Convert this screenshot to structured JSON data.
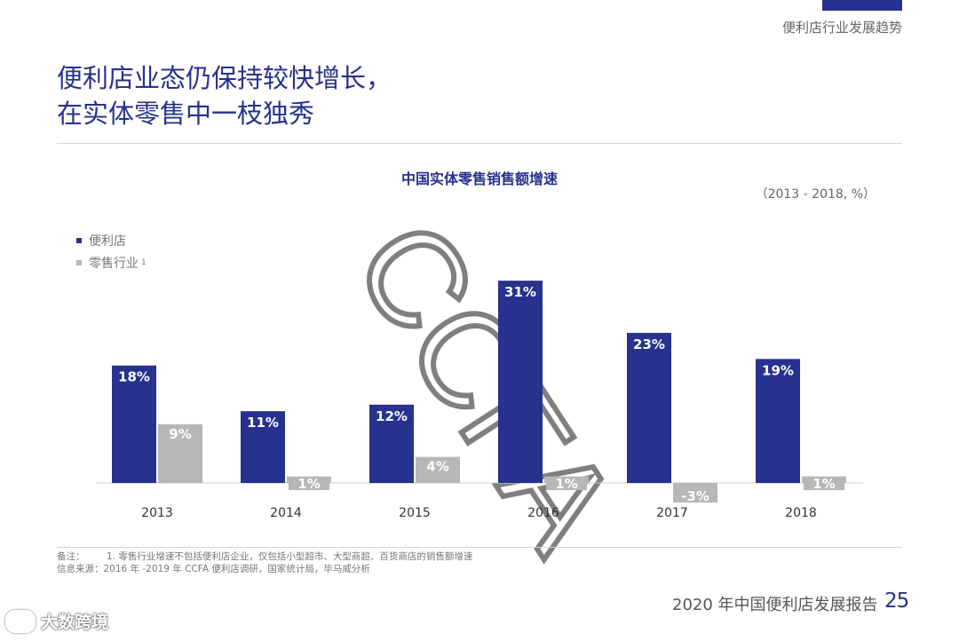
{
  "header": {
    "section_label": "便利店行业发展趋势",
    "headline_line1": "便利店业态仍保持较快增长，",
    "headline_line2": "在实体零售中一枝独秀"
  },
  "chart_data": {
    "type": "bar",
    "title": "中国实体零售销售额增速",
    "subtitle": "（2013 - 2018, %）",
    "categories": [
      "2013",
      "2014",
      "2015",
      "2016",
      "2017",
      "2018"
    ],
    "series": [
      {
        "name": "便利店",
        "values": [
          18,
          11,
          12,
          31,
          23,
          19
        ],
        "labels": [
          "18%",
          "11%",
          "12%",
          "31%",
          "23%",
          "19%"
        ],
        "color": "#27318e"
      },
      {
        "name": "零售行业",
        "values": [
          9,
          1,
          4,
          1,
          -3,
          1
        ],
        "labels": [
          "9%",
          "1%",
          "4%",
          "1%",
          "-3%",
          "1%"
        ],
        "color": "#b7b7b7"
      }
    ],
    "legend_note": "1",
    "legend_position": "top-left",
    "xlabel": "",
    "ylabel": "",
    "grid": false,
    "watermark": "CCFA"
  },
  "notes": {
    "note_label": "备注：",
    "note_text": "1. 零售行业增速不包括便利店企业，仅包括小型超市、大型商超、百货商店的销售额增速",
    "source": "信息来源：2016 年 -2019 年 CCFA 便利店调研，国家统计局，毕马威分析"
  },
  "footer": {
    "report_title": "2020 年中国便利店发展报告",
    "page_number": "25",
    "brand": "大数跨境"
  },
  "colors": {
    "accent": "#27318e",
    "secondary": "#b7b7b7"
  }
}
